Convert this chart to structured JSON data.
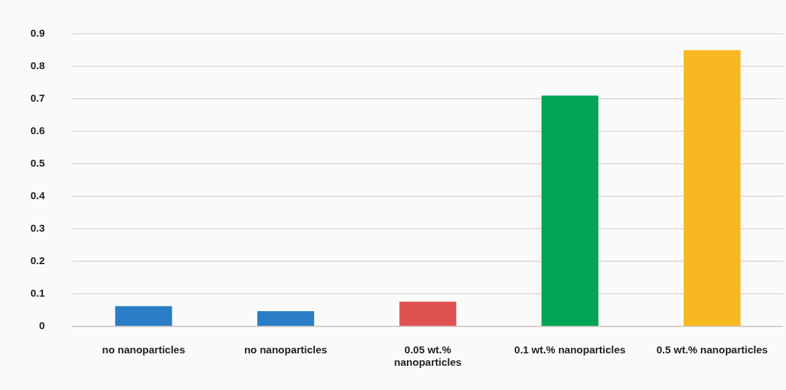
{
  "chart_data": {
    "type": "bar",
    "categories": [
      "no nanoparticles",
      "no nanoparticles",
      "0.05 wt.% nanoparticles",
      "0.1 wt.% nanoparticles",
      "0.5 wt.% nanoparticles"
    ],
    "values": [
      0.062,
      0.047,
      0.076,
      0.71,
      0.85
    ],
    "colors": [
      "#2a7dc6",
      "#2a7dc6",
      "#e05252",
      "#00a452",
      "#f8b822"
    ],
    "ylim": [
      0,
      0.9
    ],
    "yticks": [
      0,
      0.1,
      0.2,
      0.3,
      0.4,
      0.5,
      0.6,
      0.7,
      0.8,
      0.9
    ],
    "grid": "y",
    "legend": false
  }
}
